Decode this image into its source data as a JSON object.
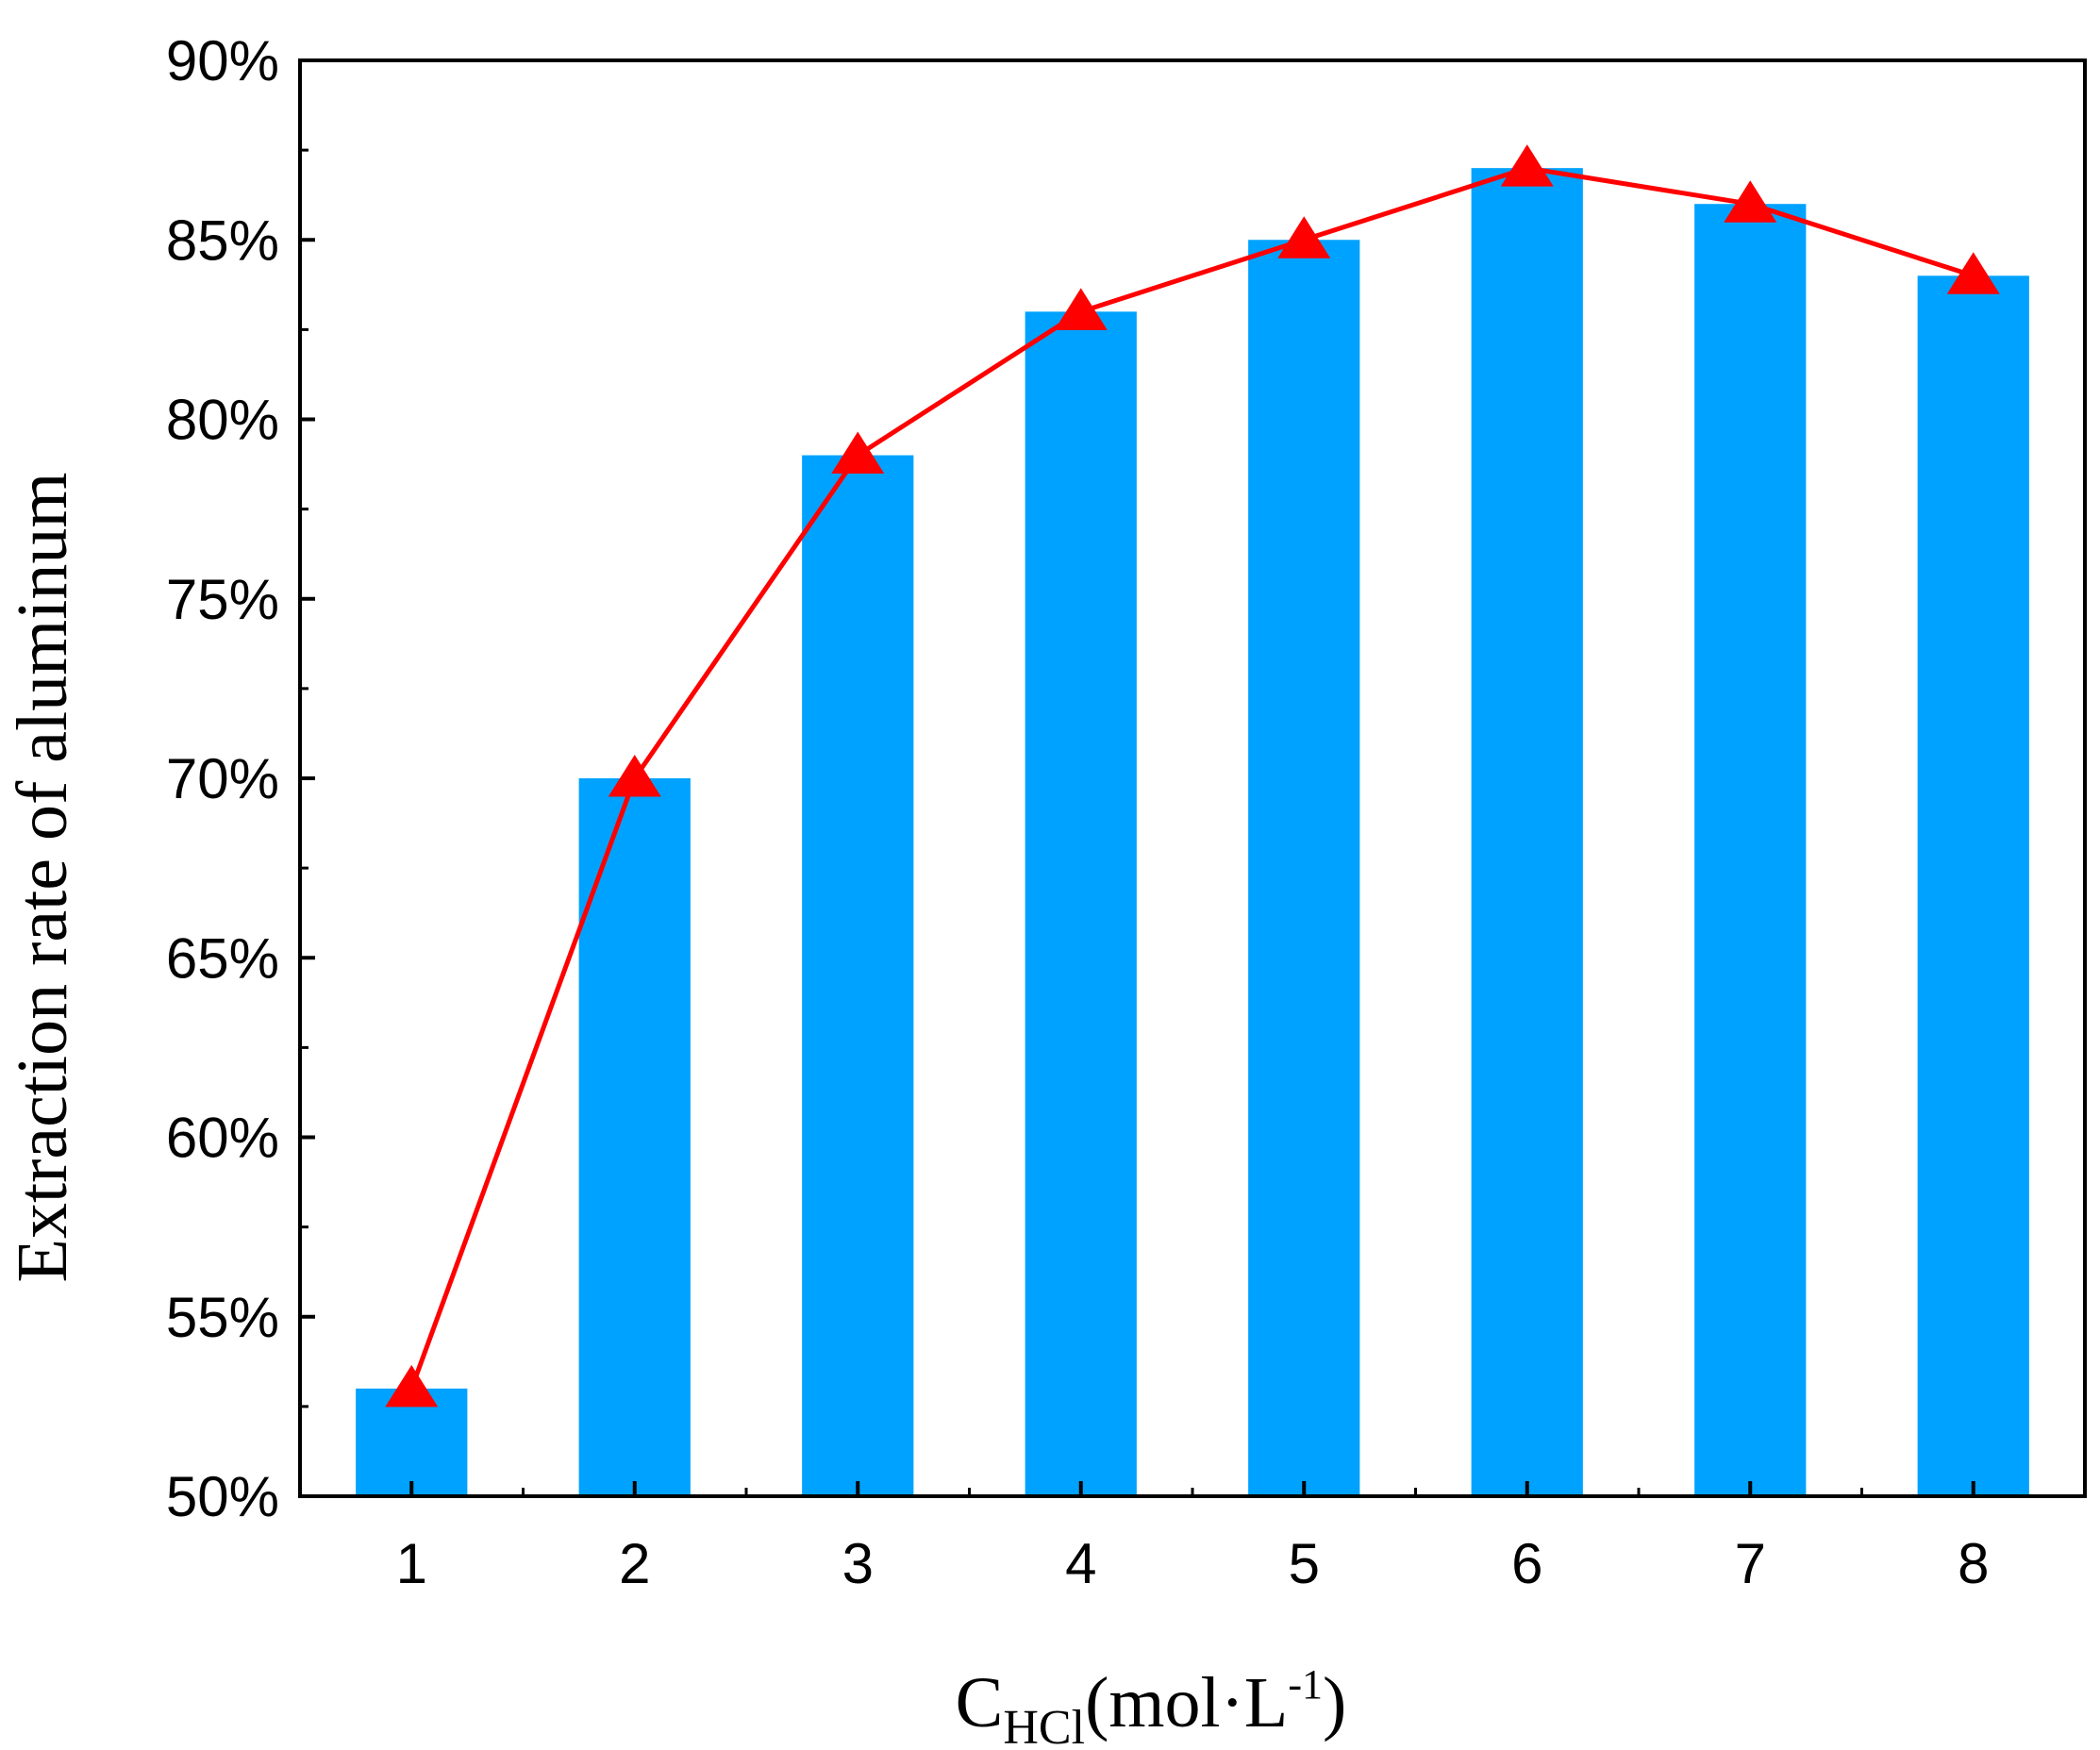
{
  "chart_data": {
    "type": "bar",
    "categories": [
      "1",
      "2",
      "3",
      "4",
      "5",
      "6",
      "7",
      "8"
    ],
    "series": [
      {
        "name": "bars",
        "kind": "bar",
        "color": "#00A2FF",
        "values": [
          53,
          70,
          79,
          83,
          85,
          87,
          86,
          84
        ]
      },
      {
        "name": "trend",
        "kind": "line",
        "marker": "triangle",
        "color": "#FF0000",
        "values": [
          53,
          70,
          79,
          83,
          85,
          87,
          86,
          84
        ]
      }
    ],
    "yticks": [
      "50%",
      "55%",
      "60%",
      "65%",
      "70%",
      "75%",
      "80%",
      "85%",
      "90%"
    ],
    "ylim": [
      50,
      90
    ],
    "ylabel": "Extraction rate of aluminum",
    "xlabel": {
      "main": "C",
      "sub": "HCl",
      "unit_open": "(mol·L",
      "sup": "-1",
      "unit_close": ")"
    },
    "grid": false
  }
}
